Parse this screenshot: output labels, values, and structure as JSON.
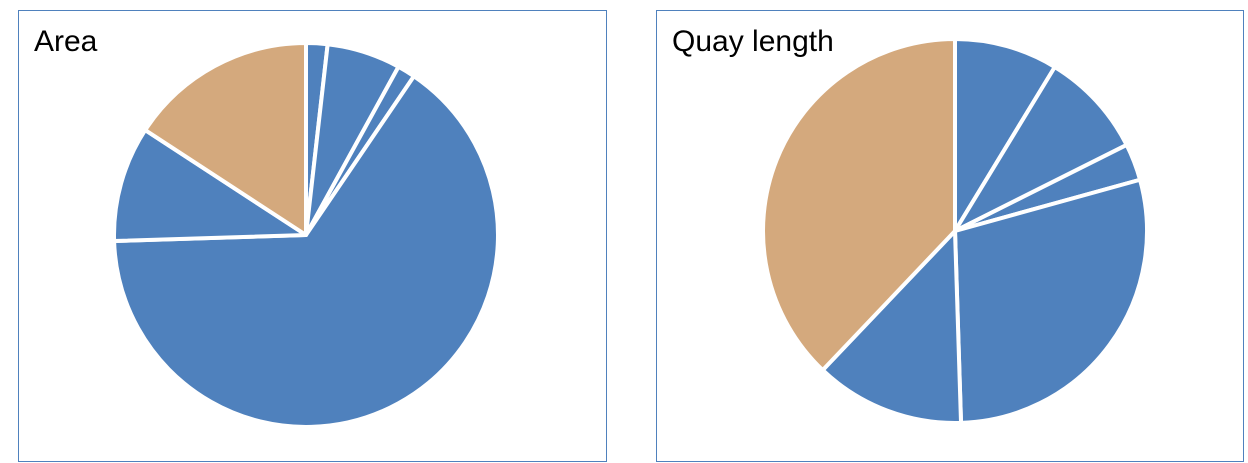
{
  "chart_data": [
    {
      "type": "pie",
      "title": "Area",
      "start_angle_deg": 0,
      "direction": "clockwise",
      "values": [
        1.8,
        6.2,
        1.5,
        65.0,
        9.7,
        15.8
      ],
      "colors": [
        "#4f81bd",
        "#4f81bd",
        "#4f81bd",
        "#4f81bd",
        "#4f81bd",
        "#d4a97d"
      ]
    },
    {
      "type": "pie",
      "title": "Quay length",
      "start_angle_deg": 0,
      "direction": "clockwise",
      "values": [
        8.7,
        8.9,
        3.1,
        28.8,
        12.6,
        37.9
      ],
      "colors": [
        "#4f81bd",
        "#4f81bd",
        "#4f81bd",
        "#4f81bd",
        "#4f81bd",
        "#d4a97d"
      ]
    }
  ]
}
